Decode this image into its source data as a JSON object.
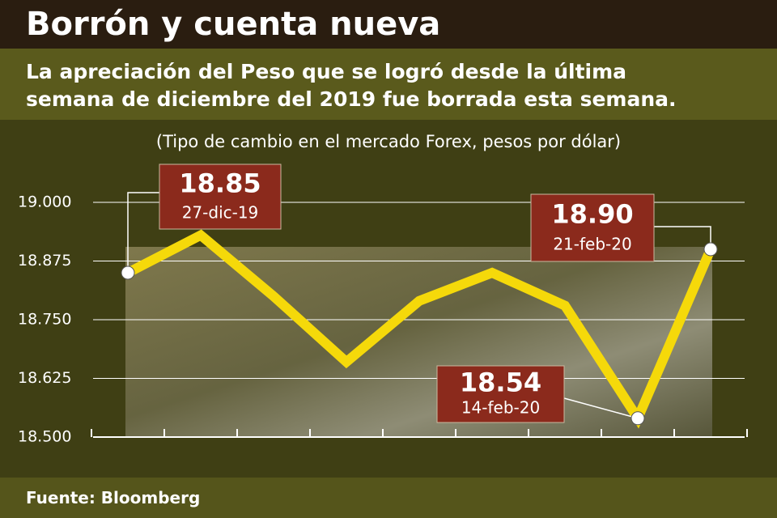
{
  "chart_data": {
    "type": "line",
    "title": "Borrón y cuenta nueva",
    "subtitle": "La apreciación del Peso que se logró desde la última semana de diciembre del 2019 fue borrada esta semana.",
    "y_label": "(Tipo de cambio en el mercado Forex, pesos por dólar)",
    "source": "Fuente: Bloomberg",
    "categories": [
      "27-dic-19",
      null,
      null,
      null,
      null,
      null,
      null,
      "14-feb-20",
      "21-feb-20"
    ],
    "values": [
      18.85,
      18.93,
      18.8,
      18.66,
      18.79,
      18.85,
      18.78,
      18.54,
      18.9
    ],
    "value_labels": [
      "18.85",
      null,
      null,
      null,
      null,
      null,
      null,
      "18.54",
      "18.90"
    ],
    "color": "#f5d90a",
    "ylim": [
      18.5,
      19.0
    ],
    "yticks": [
      {
        "value": 18.5,
        "label": "18.500"
      },
      {
        "value": 18.625,
        "label": "18.625"
      },
      {
        "value": 18.75,
        "label": "18.750"
      },
      {
        "value": 18.875,
        "label": "18.875"
      },
      {
        "value": 19.0,
        "label": "19.000"
      }
    ],
    "grid": true
  }
}
